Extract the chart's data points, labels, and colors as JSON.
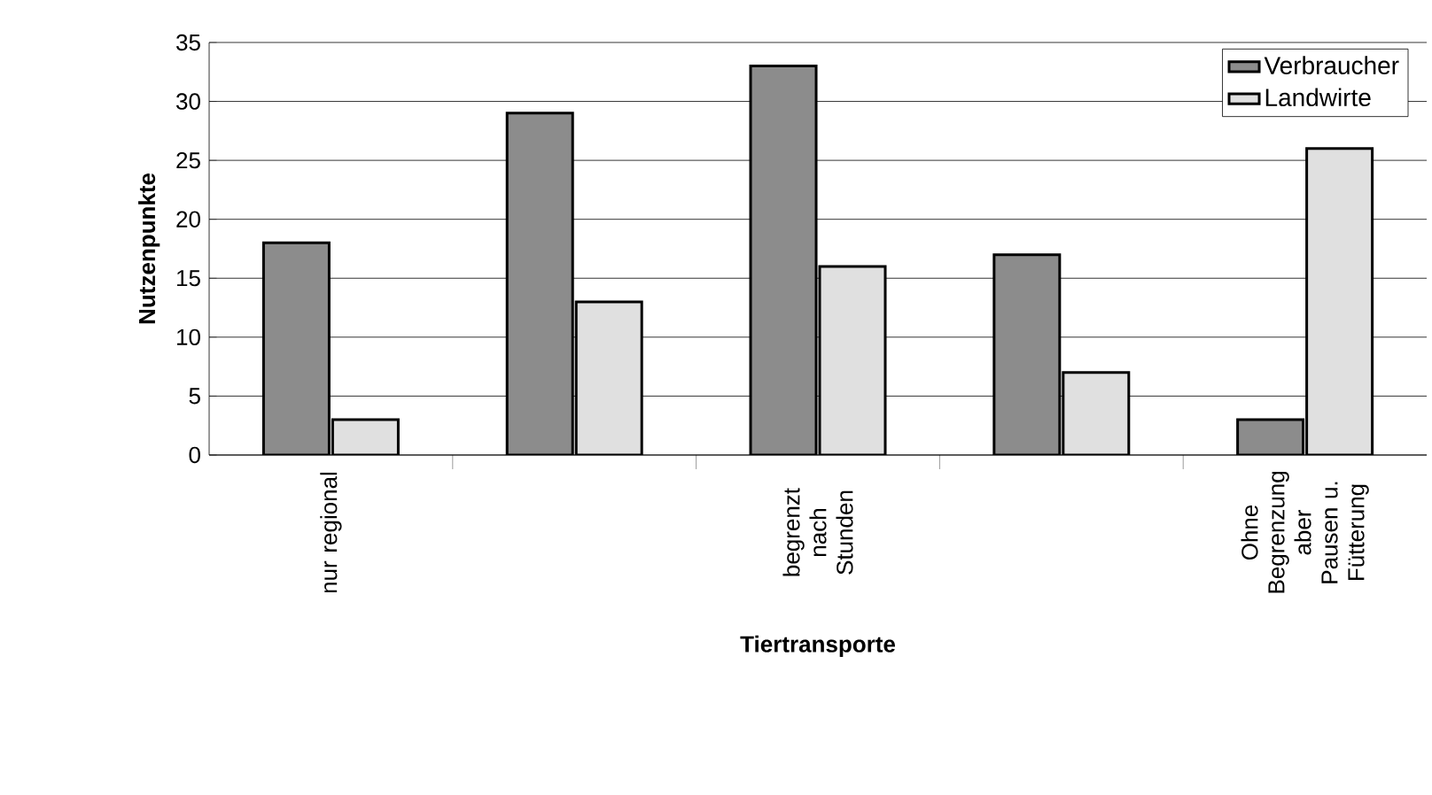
{
  "chart_data": {
    "type": "bar",
    "xlabel": "Tiertransporte",
    "ylabel": "Nutzenpunkte",
    "categories": [
      "nur regional",
      null,
      "begrenzt nach Stunden",
      null,
      "Ohne Begrenzung aber Pausen u. Fütterung"
    ],
    "series": [
      {
        "name": "Verbraucher",
        "color": "#8c8c8c",
        "values": [
          18,
          29,
          33,
          17,
          3
        ]
      },
      {
        "name": "Landwirte",
        "color": "#e0e0e0",
        "values": [
          3,
          13,
          16,
          7,
          26
        ]
      }
    ],
    "ylim": [
      0,
      35
    ],
    "yticks": [
      0,
      5,
      10,
      15,
      20,
      25,
      30,
      35
    ],
    "grid": "y",
    "legend": "top right"
  }
}
